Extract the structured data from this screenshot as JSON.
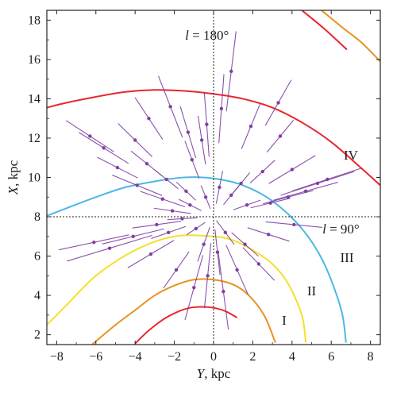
{
  "chart_data": {
    "type": "scatter",
    "xlabel_var": "Y",
    "xlabel_unit": ", kpc",
    "ylabel_var": "X",
    "ylabel_unit": ", kpc",
    "xlim": [
      -8.5,
      8.5
    ],
    "ylim": [
      1.5,
      18.5
    ],
    "x_ticks": [
      -8,
      -6,
      -4,
      -2,
      0,
      2,
      4,
      6,
      8
    ],
    "y_ticks": [
      2,
      4,
      6,
      8,
      10,
      12,
      14,
      16,
      18
    ],
    "sun": {
      "x": 0,
      "y": 8.0
    },
    "reference_lines": [
      {
        "orientation": "vertical",
        "value": 0,
        "label_var": "l",
        "label_text": " = 180°",
        "label_anchor": {
          "x": -1.45,
          "y": 17.0
        }
      },
      {
        "orientation": "horizontal",
        "value": 8.0,
        "label_var": "l",
        "label_text": " = 90°",
        "label_anchor": {
          "x": 5.55,
          "y": 7.15
        }
      }
    ],
    "arms": [
      {
        "label": "I",
        "color": "#e8262d",
        "points": [
          [
            1.2,
            2.87
          ],
          [
            0.6,
            3.2
          ],
          [
            0,
            3.37
          ],
          [
            -0.6,
            3.42
          ],
          [
            -1.2,
            3.37
          ],
          [
            -1.8,
            3.18
          ],
          [
            -2.5,
            2.82
          ],
          [
            -3.3,
            2.22
          ],
          [
            -4.0,
            1.55
          ]
        ]
      },
      {
        "label": "I",
        "color": "#e8262d",
        "points": [
          [
            6.8,
            16.5
          ],
          [
            5.6,
            17.6
          ],
          [
            4.5,
            18.5
          ]
        ],
        "outer": true
      },
      {
        "label": "II",
        "color": "#e8921f",
        "points": [
          [
            3.15,
            1.6
          ],
          [
            2.6,
            2.95
          ],
          [
            1.8,
            4.0
          ],
          [
            1.0,
            4.55
          ],
          [
            0,
            4.8
          ],
          [
            -1.0,
            4.8
          ],
          [
            -2.0,
            4.5
          ],
          [
            -3.0,
            4.0
          ],
          [
            -4.0,
            3.25
          ],
          [
            -5.0,
            2.5
          ],
          [
            -6.2,
            1.5
          ]
        ]
      },
      {
        "label": "II",
        "color": "#e8921f",
        "points": [
          [
            8.5,
            15.9
          ],
          [
            7.5,
            16.9
          ],
          [
            6.6,
            17.6
          ],
          [
            5.5,
            18.5
          ]
        ],
        "outer": true
      },
      {
        "label": "III",
        "color": "#f2e12c",
        "points": [
          [
            4.7,
            1.6
          ],
          [
            4.5,
            3.0
          ],
          [
            3.8,
            4.6
          ],
          [
            3.0,
            5.6
          ],
          [
            2.0,
            6.3
          ],
          [
            1.0,
            6.8
          ],
          [
            0,
            7.0
          ],
          [
            -2.0,
            7.0
          ],
          [
            -4.0,
            6.3
          ],
          [
            -6.0,
            5.0
          ],
          [
            -7.5,
            3.5
          ],
          [
            -8.5,
            2.5
          ]
        ]
      },
      {
        "label": "IV",
        "color": "#4cb7e6",
        "points": [
          [
            6.75,
            1.6
          ],
          [
            6.5,
            3.3
          ],
          [
            5.6,
            5.7
          ],
          [
            4.5,
            7.4
          ],
          [
            3.0,
            8.8
          ],
          [
            1.5,
            9.6
          ],
          [
            0,
            9.95
          ],
          [
            -1.5,
            10.0
          ],
          [
            -3.0,
            9.8
          ],
          [
            -4.5,
            9.5
          ],
          [
            -6.0,
            9.0
          ],
          [
            -7.2,
            8.55
          ],
          [
            -8.5,
            8.05
          ]
        ]
      },
      {
        "label": "outer",
        "color": "#e8262d",
        "points": [
          [
            8.5,
            9.6
          ],
          [
            7.5,
            10.5
          ],
          [
            6.0,
            11.8
          ],
          [
            4.5,
            12.8
          ],
          [
            3.0,
            13.55
          ],
          [
            1.5,
            14.0
          ],
          [
            0,
            14.25
          ],
          [
            -1.5,
            14.4
          ],
          [
            -3.0,
            14.45
          ],
          [
            -4.5,
            14.35
          ],
          [
            -6.0,
            14.1
          ],
          [
            -7.5,
            13.8
          ],
          [
            -8.5,
            13.55
          ]
        ]
      }
    ],
    "arm_labels": [
      {
        "text": "I",
        "x": 3.6,
        "y": 2.5
      },
      {
        "text": "II",
        "x": 5.0,
        "y": 4.0
      },
      {
        "text": "III",
        "x": 6.8,
        "y": 5.7
      },
      {
        "text": "IV",
        "x": 7.0,
        "y": 10.9
      }
    ],
    "points": [
      {
        "x": 0.9,
        "y": 15.4,
        "ux": 0.35,
        "uy": 1.9
      },
      {
        "x": 0.4,
        "y": 13.5,
        "ux": 0.3,
        "uy": 1.6
      },
      {
        "x": -0.35,
        "y": 12.7,
        "ux": 0.3,
        "uy": 1.5
      },
      {
        "x": -1.3,
        "y": 12.3,
        "ux": 0.55,
        "uy": 1.25
      },
      {
        "x": -2.2,
        "y": 13.6,
        "ux": 0.75,
        "uy": 1.6
      },
      {
        "x": -3.3,
        "y": 13.0,
        "ux": 0.9,
        "uy": 1.2
      },
      {
        "x": -4.0,
        "y": 11.9,
        "ux": 1.1,
        "uy": 1.0
      },
      {
        "x": -5.6,
        "y": 11.5,
        "ux": 1.5,
        "uy": 0.75
      },
      {
        "x": -6.3,
        "y": 12.1,
        "ux": 1.4,
        "uy": 1.0
      },
      {
        "x": -4.9,
        "y": 10.5,
        "ux": 1.1,
        "uy": 0.45
      },
      {
        "x": -3.9,
        "y": 9.6,
        "ux": 1.3,
        "uy": 0.4
      },
      {
        "x": -2.4,
        "y": 9.9,
        "ux": 0.7,
        "uy": 0.4
      },
      {
        "x": -1.1,
        "y": 10.9,
        "ux": 0.4,
        "uy": 0.9
      },
      {
        "x": -0.6,
        "y": 11.9,
        "ux": 0.4,
        "uy": 1.1
      },
      {
        "x": 1.9,
        "y": 12.6,
        "ux": 0.9,
        "uy": 1.1
      },
      {
        "x": 3.3,
        "y": 13.8,
        "ux": 1.1,
        "uy": 1.2
      },
      {
        "x": 3.4,
        "y": 12.1,
        "ux": 0.9,
        "uy": 0.9
      },
      {
        "x": 4.0,
        "y": 10.4,
        "ux": 1.4,
        "uy": 0.5
      },
      {
        "x": 2.5,
        "y": 10.3,
        "ux": 0.8,
        "uy": 0.55
      },
      {
        "x": 5.3,
        "y": 9.7,
        "ux": 1.9,
        "uy": 0.4
      },
      {
        "x": 5.8,
        "y": 9.9,
        "ux": 1.8,
        "uy": 0.3
      },
      {
        "x": 3.8,
        "y": 9.0,
        "ux": 1.2,
        "uy": 0.25
      },
      {
        "x": 2.9,
        "y": 8.7,
        "ux": 0.9,
        "uy": 0.25
      },
      {
        "x": 1.7,
        "y": 8.6,
        "ux": 0.6,
        "uy": 0.25
      },
      {
        "x": 4.1,
        "y": 7.6,
        "ux": 1.3,
        "uy": 0.3
      },
      {
        "x": 2.8,
        "y": 7.1,
        "ux": 1.0,
        "uy": 0.4
      },
      {
        "x": 1.6,
        "y": 6.6,
        "ux": 0.7,
        "uy": 0.8
      },
      {
        "x": 1.2,
        "y": 5.3,
        "ux": 0.7,
        "uy": 1.3
      },
      {
        "x": 0.5,
        "y": 4.2,
        "ux": 0.5,
        "uy": 1.8
      },
      {
        "x": -0.3,
        "y": 5.0,
        "ux": 0.4,
        "uy": 1.5
      },
      {
        "x": -1.0,
        "y": 4.4,
        "ux": 0.5,
        "uy": 1.6
      },
      {
        "x": -1.9,
        "y": 5.3,
        "ux": 0.9,
        "uy": 1.0
      },
      {
        "x": -3.2,
        "y": 6.1,
        "ux": 1.3,
        "uy": 0.9
      },
      {
        "x": -5.3,
        "y": 6.4,
        "ux": 2.2,
        "uy": 0.6
      },
      {
        "x": -4.1,
        "y": 7.0,
        "ux": 1.5,
        "uy": 0.6
      },
      {
        "x": -2.3,
        "y": 7.2,
        "ux": 0.8,
        "uy": 0.45
      },
      {
        "x": -2.9,
        "y": 7.6,
        "ux": 1.1,
        "uy": 0.3
      },
      {
        "x": -1.6,
        "y": 7.9,
        "ux": 0.6,
        "uy": 0.3
      },
      {
        "x": -2.1,
        "y": 8.3,
        "ux": 0.8,
        "uy": 0.3
      },
      {
        "x": -2.6,
        "y": 8.9,
        "ux": 1.1,
        "uy": 0.3
      },
      {
        "x": -1.4,
        "y": 9.3,
        "ux": 0.6,
        "uy": 0.4
      },
      {
        "x": -0.4,
        "y": 9.0,
        "ux": 0.3,
        "uy": 0.5
      },
      {
        "x": 0.3,
        "y": 9.5,
        "ux": 0.3,
        "uy": 0.7
      },
      {
        "x": 0.9,
        "y": 9.1,
        "ux": 0.4,
        "uy": 0.5
      },
      {
        "x": 0.6,
        "y": 7.2,
        "ux": 0.35,
        "uy": 0.7
      },
      {
        "x": -0.5,
        "y": 6.6,
        "ux": 0.35,
        "uy": 0.8
      },
      {
        "x": -0.9,
        "y": 7.4,
        "ux": 0.4,
        "uy": 0.4
      },
      {
        "x": 0.2,
        "y": 6.2,
        "ux": 0.3,
        "uy": 1.0
      },
      {
        "x": -1.2,
        "y": 8.6,
        "ux": 0.5,
        "uy": 0.4
      },
      {
        "x": 1.4,
        "y": 9.7,
        "ux": 0.6,
        "uy": 0.5
      },
      {
        "x": -3.4,
        "y": 10.7,
        "ux": 1.0,
        "uy": 0.6
      },
      {
        "x": 4.7,
        "y": 9.3,
        "ux": 1.6,
        "uy": 0.3
      },
      {
        "x": -6.1,
        "y": 6.7,
        "ux": 1.7,
        "uy": 0.5
      },
      {
        "x": 2.3,
        "y": 5.6,
        "ux": 1.0,
        "uy": 1.0
      }
    ]
  }
}
